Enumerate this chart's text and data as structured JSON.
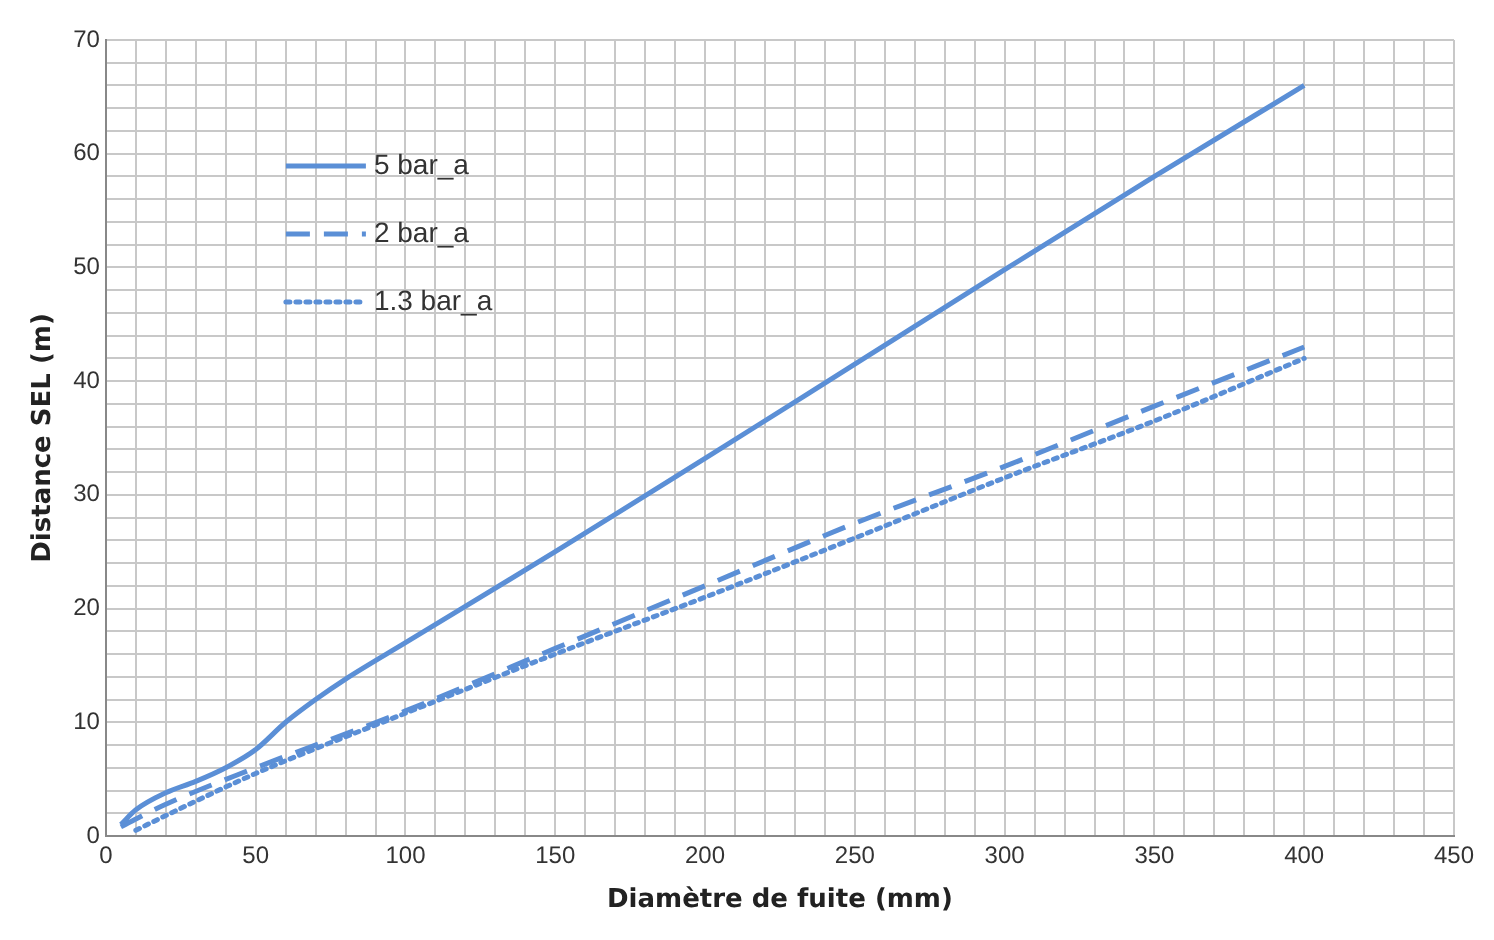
{
  "chart_data": {
    "type": "line",
    "xlabel": "Diamètre de fuite (mm)",
    "ylabel": "Distance SEL (m)",
    "xlim": [
      0,
      450
    ],
    "ylim": [
      0,
      70
    ],
    "xticks": [
      0,
      {
        "value": 10,
        "label": null
      },
      {
        "value": 20,
        "label": null
      },
      {
        "value": 30,
        "label": null
      },
      {
        "value": 40,
        "label": null
      },
      50,
      {
        "value": 60,
        "label": null
      },
      {
        "value": 70,
        "label": null
      },
      {
        "value": 80,
        "label": null
      },
      {
        "value": 90,
        "label": null
      },
      100,
      {
        "value": 110,
        "label": null
      },
      {
        "value": 120,
        "label": null
      },
      {
        "value": 130,
        "label": null
      },
      {
        "value": 140,
        "label": null
      },
      150,
      {
        "value": 160,
        "label": null
      },
      {
        "value": 170,
        "label": null
      },
      {
        "value": 180,
        "label": null
      },
      {
        "value": 190,
        "label": null
      },
      200,
      {
        "value": 210,
        "label": null
      },
      {
        "value": 220,
        "label": null
      },
      {
        "value": 230,
        "label": null
      },
      {
        "value": 240,
        "label": null
      },
      250,
      {
        "value": 260,
        "label": null
      },
      {
        "value": 270,
        "label": null
      },
      {
        "value": 280,
        "label": null
      },
      {
        "value": 290,
        "label": null
      },
      300,
      {
        "value": 310,
        "label": null
      },
      {
        "value": 320,
        "label": null
      },
      {
        "value": 330,
        "label": null
      },
      {
        "value": 340,
        "label": null
      },
      350,
      {
        "value": 360,
        "label": null
      },
      {
        "value": 370,
        "label": null
      },
      {
        "value": 380,
        "label": null
      },
      {
        "value": 390,
        "label": null
      },
      400,
      {
        "value": 410,
        "label": null
      },
      {
        "value": 420,
        "label": null
      },
      {
        "value": 430,
        "label": null
      },
      {
        "value": 440,
        "label": null
      },
      450
    ],
    "yticks": [
      0,
      {
        "value": 2,
        "label": null
      },
      {
        "value": 4,
        "label": null
      },
      {
        "value": 6,
        "label": null
      },
      {
        "value": 8,
        "label": null
      },
      10,
      {
        "value": 12,
        "label": null
      },
      {
        "value": 14,
        "label": null
      },
      {
        "value": 16,
        "label": null
      },
      {
        "value": 18,
        "label": null
      },
      20,
      {
        "value": 22,
        "label": null
      },
      {
        "value": 24,
        "label": null
      },
      {
        "value": 26,
        "label": null
      },
      {
        "value": 28,
        "label": null
      },
      30,
      {
        "value": 32,
        "label": null
      },
      {
        "value": 34,
        "label": null
      },
      {
        "value": 36,
        "label": null
      },
      {
        "value": 38,
        "label": null
      },
      40,
      {
        "value": 42,
        "label": null
      },
      {
        "value": 44,
        "label": null
      },
      {
        "value": 46,
        "label": null
      },
      {
        "value": 48,
        "label": null
      },
      50,
      {
        "value": 52,
        "label": null
      },
      {
        "value": 54,
        "label": null
      },
      {
        "value": 56,
        "label": null
      },
      {
        "value": 58,
        "label": null
      },
      60,
      {
        "value": 62,
        "label": null
      },
      {
        "value": 64,
        "label": null
      },
      {
        "value": 66,
        "label": null
      },
      {
        "value": 68,
        "label": null
      },
      70
    ],
    "grid": true,
    "legend": "top left",
    "marker": "none",
    "series": [
      {
        "name": "5 bar_a",
        "color": "#5b8fd6",
        "line_style": "solid",
        "x": [
          5,
          10,
          20,
          30,
          40,
          50,
          60,
          70,
          80,
          100,
          150,
          200,
          250,
          300,
          350,
          400
        ],
        "values": [
          1,
          2.3,
          3.8,
          4.8,
          6,
          7.6,
          10,
          12,
          13.8,
          17,
          25,
          33.2,
          41.5,
          49.8,
          58,
          66
        ]
      },
      {
        "name": "2 bar_a",
        "color": "#5b8fd6",
        "line_style": "dashed",
        "x": [
          5,
          10,
          20,
          50,
          100,
          150,
          200,
          250,
          300,
          350,
          400
        ],
        "values": [
          0.8,
          1.5,
          2.8,
          6,
          11,
          16.5,
          22,
          27.5,
          32.5,
          37.8,
          43
        ]
      },
      {
        "name": "1.3 bar_a",
        "color": "#5b8fd6",
        "line_style": "dotted",
        "x": [
          10,
          20,
          50,
          100,
          150,
          200,
          250,
          300,
          350,
          400
        ],
        "values": [
          0.5,
          1.8,
          5.5,
          10.8,
          16,
          21,
          26.2,
          31.5,
          36.5,
          42
        ]
      }
    ]
  }
}
